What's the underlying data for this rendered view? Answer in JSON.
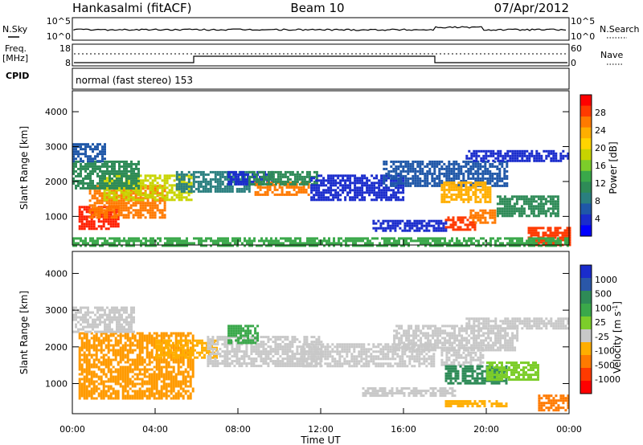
{
  "header": {
    "station": "Hankasalmi (fitACF)",
    "beam": "Beam 10",
    "date": "07/Apr/2012"
  },
  "noise_panel": {
    "left_label": "N.Sky",
    "right_label": "N.Search",
    "left_ticks": [
      "10^5",
      "10^0"
    ],
    "right_ticks": [
      "10^5",
      "10^0"
    ]
  },
  "freq_panel": {
    "left_label_line1": "Freq.",
    "left_label_line2": "[MHz]",
    "left_ticks": [
      "18",
      "8"
    ],
    "right_ticks": [
      "60",
      "0"
    ],
    "right_label": "Nave",
    "cpid_label": "CPID"
  },
  "cpid_text": "normal (fast stereo) 153",
  "time_axis": {
    "label": "Time UT",
    "ticks": [
      "00:00",
      "04:00",
      "08:00",
      "12:00",
      "16:00",
      "20:00",
      "00:00"
    ]
  },
  "power_panel": {
    "ylabel": "Slant Range [km]",
    "yticks": [
      "4000",
      "3000",
      "2000",
      "1000"
    ],
    "colorbar_label": "Power [dB]",
    "colorbar_ticks": [
      "28",
      "24",
      "20",
      "16",
      "12",
      "8",
      "4"
    ],
    "colorbar_colors": [
      "#ff0000",
      "#ff3a00",
      "#ff7a00",
      "#ffae00",
      "#ffd400",
      "#c8d400",
      "#7ccd2a",
      "#3aa84a",
      "#2e8b57",
      "#2a7f7f",
      "#1f57a8",
      "#1a2ccc",
      "#0000ff"
    ]
  },
  "velocity_panel": {
    "ylabel": "Slant Range [km]",
    "yticks": [
      "4000",
      "3000",
      "2000",
      "1000"
    ],
    "colorbar_label": "Velocity [m s^-1]",
    "colorbar_ticks": [
      "1000",
      "500",
      "100",
      "25",
      "-25",
      "-100",
      "-500",
      "-1000"
    ],
    "colorbar_colors": [
      "#1a2ccc",
      "#2a57a8",
      "#2e8b57",
      "#3aa84a",
      "#7ccd2a",
      "#c8c8c8",
      "#ffae00",
      "#ff7a00",
      "#ff3a00",
      "#ff0000"
    ]
  },
  "chart_data": {
    "type": "heatmap",
    "x_range_hours": [
      0,
      24
    ],
    "y_range_km": [
      180,
      4600
    ],
    "power_regions": [
      {
        "t0": 0.3,
        "t1": 2.2,
        "r0": 620,
        "r1": 1300,
        "color": "#ff2000"
      },
      {
        "t0": 0.8,
        "t1": 4.5,
        "r0": 1000,
        "r1": 1900,
        "color": "#ff7a00"
      },
      {
        "t0": 1.5,
        "t1": 5.8,
        "r0": 1500,
        "r1": 2200,
        "color": "#c8d400"
      },
      {
        "t0": 0.0,
        "t1": 3.2,
        "r0": 1800,
        "r1": 2600,
        "color": "#2e8b57"
      },
      {
        "t0": 0.0,
        "t1": 1.6,
        "r0": 2600,
        "r1": 3100,
        "color": "#1f57a8"
      },
      {
        "t0": 5.0,
        "t1": 8.5,
        "r0": 1700,
        "r1": 2300,
        "color": "#2a7f7f"
      },
      {
        "t0": 7.5,
        "t1": 9.6,
        "r0": 1900,
        "r1": 2300,
        "color": "#1a2ccc"
      },
      {
        "t0": 8.8,
        "t1": 11.4,
        "r0": 1600,
        "r1": 2000,
        "color": "#ff7a00"
      },
      {
        "t0": 8.5,
        "t1": 11.8,
        "r0": 1900,
        "r1": 2300,
        "color": "#2e8b57"
      },
      {
        "t0": 11.5,
        "t1": 16.0,
        "r0": 1500,
        "r1": 2200,
        "color": "#1a2ccc"
      },
      {
        "t0": 15.0,
        "t1": 21.0,
        "r0": 1900,
        "r1": 2600,
        "color": "#1f57a8"
      },
      {
        "t0": 19.0,
        "t1": 24.0,
        "r0": 2600,
        "r1": 2900,
        "color": "#1a2ccc"
      },
      {
        "t0": 17.8,
        "t1": 20.2,
        "r0": 1400,
        "r1": 2000,
        "color": "#ffae00"
      },
      {
        "t0": 14.5,
        "t1": 18.0,
        "r0": 600,
        "r1": 900,
        "color": "#1a2ccc"
      },
      {
        "t0": 18.0,
        "t1": 19.5,
        "r0": 650,
        "r1": 1000,
        "color": "#ff3a00"
      },
      {
        "t0": 19.2,
        "t1": 20.4,
        "r0": 800,
        "r1": 1200,
        "color": "#ff7a00"
      },
      {
        "t0": 20.5,
        "t1": 23.5,
        "r0": 1000,
        "r1": 1600,
        "color": "#2e8b57"
      },
      {
        "t0": 22.0,
        "t1": 24.0,
        "r0": 180,
        "r1": 700,
        "color": "#ff3a00"
      },
      {
        "t0": 0.0,
        "t1": 24.0,
        "r0": 180,
        "r1": 400,
        "color": "#3aa84a"
      }
    ],
    "velocity_regions": [
      {
        "t0": 0.3,
        "t1": 5.8,
        "r0": 600,
        "r1": 2400,
        "color": "#ff9a00"
      },
      {
        "t0": 0.0,
        "t1": 3.0,
        "r0": 2400,
        "r1": 3100,
        "color": "#c8c8c8"
      },
      {
        "t0": 4.0,
        "t1": 7.0,
        "r0": 1700,
        "r1": 2200,
        "color": "#ffae00"
      },
      {
        "t0": 6.5,
        "t1": 12.0,
        "r0": 1500,
        "r1": 2300,
        "color": "#c8c8c8"
      },
      {
        "t0": 7.5,
        "t1": 9.0,
        "r0": 2100,
        "r1": 2600,
        "color": "#3aa84a"
      },
      {
        "t0": 11.0,
        "t1": 17.5,
        "r0": 1500,
        "r1": 2100,
        "color": "#c8c8c8"
      },
      {
        "t0": 15.5,
        "t1": 21.5,
        "r0": 1900,
        "r1": 2600,
        "color": "#c8c8c8"
      },
      {
        "t0": 19.0,
        "t1": 24.0,
        "r0": 2500,
        "r1": 2800,
        "color": "#c8c8c8"
      },
      {
        "t0": 17.8,
        "t1": 19.8,
        "r0": 1500,
        "r1": 2000,
        "color": "#c8c8c8"
      },
      {
        "t0": 18.0,
        "t1": 21.0,
        "r0": 1000,
        "r1": 1500,
        "color": "#2e8b57"
      },
      {
        "t0": 20.0,
        "t1": 22.5,
        "r0": 1100,
        "r1": 1600,
        "color": "#7ccd2a"
      },
      {
        "t0": 14.0,
        "t1": 18.5,
        "r0": 650,
        "r1": 900,
        "color": "#c8c8c8"
      },
      {
        "t0": 18.0,
        "t1": 21.0,
        "r0": 380,
        "r1": 550,
        "color": "#ffae00"
      },
      {
        "t0": 22.5,
        "t1": 24.0,
        "r0": 300,
        "r1": 700,
        "color": "#ff7a00"
      }
    ]
  }
}
